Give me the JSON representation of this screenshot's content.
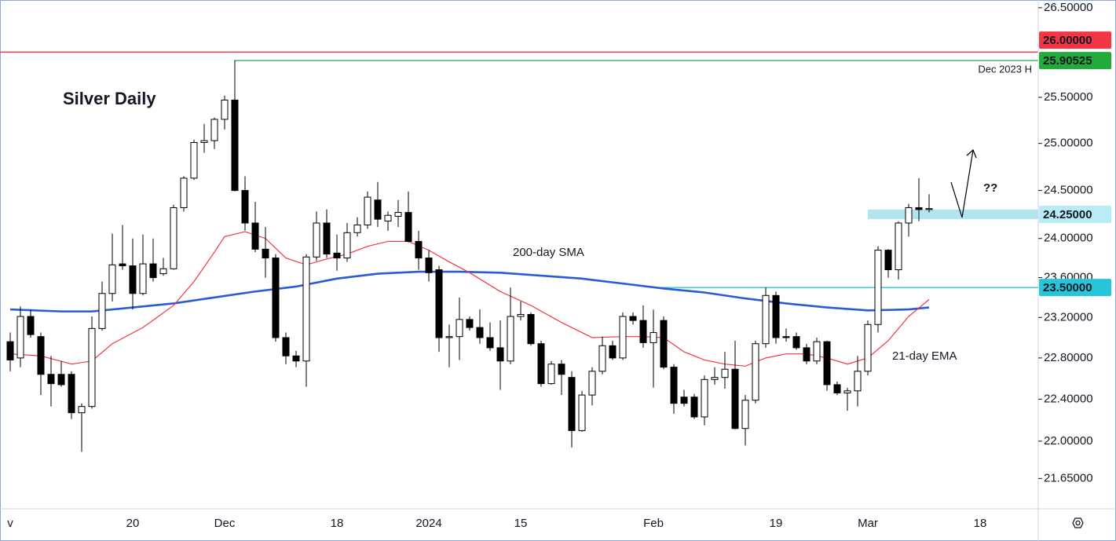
{
  "chart_data": {
    "type": "candlestick",
    "title": "Silver Daily",
    "question": "??",
    "log_scale": true,
    "grid": false,
    "up_color": "#ffffff",
    "down_color": "#000000",
    "wick_color": "#000000",
    "categories": [
      "v",
      null,
      null,
      null,
      null,
      null,
      null,
      null,
      null,
      null,
      null,
      null,
      "20",
      null,
      null,
      null,
      null,
      null,
      null,
      null,
      null,
      "Dec",
      null,
      null,
      null,
      null,
      null,
      null,
      null,
      null,
      null,
      null,
      "18",
      null,
      null,
      null,
      null,
      null,
      null,
      null,
      null,
      "2024",
      null,
      null,
      null,
      null,
      null,
      null,
      null,
      null,
      "15",
      null,
      null,
      null,
      null,
      null,
      null,
      null,
      null,
      null,
      null,
      null,
      null,
      "Feb",
      null,
      null,
      null,
      null,
      null,
      null,
      null,
      null,
      null,
      null,
      null,
      "19",
      null,
      null,
      null,
      null,
      null,
      null,
      null,
      null,
      "Mar",
      null,
      null,
      null,
      null,
      null,
      null,
      null,
      null,
      null,
      null,
      "18",
      null,
      null,
      null,
      null,
      null
    ],
    "open": [
      22.96,
      22.8,
      23.21,
      23.01,
      22.64,
      22.64,
      22.64,
      22.27,
      22.33,
      23.09,
      23.44,
      23.74,
      23.72,
      23.44,
      23.74,
      23.64,
      23.69,
      24.32,
      24.63,
      25.01,
      25.03,
      25.26,
      25.47,
      24.5,
      24.16,
      23.89,
      23.8,
      23.0,
      22.82,
      22.77,
      23.81,
      24.16,
      23.85,
      23.8,
      24.06,
      24.14,
      24.4,
      24.18,
      24.23,
      24.27,
      23.97,
      23.8,
      23.68,
      23.0,
      23.01,
      23.18,
      23.1,
      23.0,
      22.9,
      22.77,
      23.21,
      23.23,
      22.94,
      22.55,
      22.74,
      22.61,
      22.1,
      22.44,
      22.67,
      22.92,
      22.8,
      23.21,
      23.17,
      22.95,
      23.17,
      22.71,
      22.42,
      22.42,
      22.23,
      22.59,
      22.61,
      22.69,
      22.12,
      22.39,
      22.94,
      23.42,
      23.01,
      23.01,
      22.9,
      22.77,
      22.96,
      22.54,
      22.46,
      22.48,
      22.67,
      23.13,
      23.88,
      23.68,
      24.16,
      24.32,
      24.3,
      null,
      null,
      null,
      null,
      null,
      null,
      null,
      null,
      null,
      null
    ],
    "high": [
      23.05,
      23.31,
      23.28,
      23.05,
      22.82,
      22.77,
      22.67,
      22.36,
      23.21,
      23.56,
      24.05,
      24.14,
      24.0,
      24.04,
      24.0,
      23.8,
      24.35,
      24.65,
      25.04,
      25.21,
      25.28,
      25.52,
      25.91,
      24.65,
      24.38,
      24.12,
      23.84,
      23.05,
      22.87,
      23.84,
      24.28,
      24.3,
      24.04,
      24.16,
      24.22,
      24.49,
      24.59,
      24.28,
      24.4,
      24.49,
      24.08,
      23.88,
      23.72,
      23.13,
      23.4,
      23.21,
      23.28,
      23.15,
      23.17,
      23.5,
      23.36,
      23.25,
      22.97,
      22.77,
      22.78,
      22.67,
      22.48,
      22.71,
      23.01,
      22.97,
      23.25,
      23.25,
      23.32,
      23.28,
      23.21,
      22.74,
      22.49,
      22.45,
      22.63,
      22.71,
      22.86,
      22.97,
      22.44,
      22.97,
      23.5,
      23.46,
      23.09,
      23.05,
      22.94,
      23.0,
      22.97,
      22.57,
      22.51,
      22.82,
      23.17,
      23.92,
      23.89,
      24.18,
      24.36,
      24.63,
      24.46,
      null,
      null,
      null,
      null,
      null,
      null,
      null,
      null,
      null,
      null
    ],
    "low": [
      22.67,
      22.71,
      23.0,
      22.44,
      22.33,
      22.52,
      22.21,
      21.9,
      22.31,
      23.07,
      23.36,
      23.68,
      23.28,
      23.42,
      23.56,
      23.62,
      23.68,
      24.28,
      24.61,
      24.9,
      24.94,
      25.15,
      24.49,
      24.08,
      23.86,
      23.6,
      22.96,
      22.74,
      22.71,
      22.52,
      23.77,
      23.8,
      23.67,
      23.76,
      24.02,
      24.1,
      24.12,
      24.08,
      24.12,
      23.96,
      23.68,
      23.56,
      22.86,
      22.71,
      22.78,
      23.07,
      22.94,
      22.87,
      22.49,
      22.74,
      23.17,
      22.92,
      22.52,
      22.54,
      22.44,
      21.94,
      22.09,
      22.34,
      22.64,
      22.78,
      22.78,
      23.13,
      22.9,
      22.51,
      22.69,
      22.26,
      22.33,
      22.21,
      22.15,
      22.54,
      22.5,
      22.11,
      21.96,
      22.36,
      22.9,
      22.94,
      22.96,
      22.88,
      22.74,
      22.74,
      22.48,
      22.44,
      22.29,
      22.33,
      22.63,
      23.05,
      23.6,
      23.58,
      24.02,
      24.18,
      24.27,
      null,
      null,
      null,
      null,
      null,
      null,
      null,
      null,
      null,
      null
    ],
    "close": [
      22.78,
      23.21,
      23.03,
      22.64,
      22.55,
      22.54,
      22.27,
      22.33,
      23.09,
      23.44,
      23.73,
      23.72,
      23.44,
      23.74,
      23.6,
      23.69,
      24.32,
      24.63,
      25.01,
      25.03,
      25.26,
      25.47,
      24.5,
      24.16,
      23.89,
      23.8,
      23.0,
      22.82,
      22.77,
      23.81,
      24.16,
      23.84,
      23.8,
      24.06,
      24.14,
      24.43,
      24.2,
      24.24,
      24.27,
      23.97,
      23.8,
      23.65,
      23.0,
      23.01,
      23.18,
      23.1,
      23.0,
      22.9,
      22.77,
      23.21,
      23.23,
      22.94,
      22.55,
      22.74,
      22.64,
      22.1,
      22.44,
      22.67,
      22.92,
      22.8,
      23.21,
      23.17,
      22.95,
      23.05,
      22.71,
      22.36,
      22.36,
      22.23,
      22.59,
      22.61,
      22.69,
      22.12,
      22.39,
      22.94,
      23.42,
      23.0,
      23.0,
      22.9,
      22.77,
      22.96,
      22.54,
      22.46,
      22.48,
      22.67,
      23.13,
      23.88,
      23.68,
      24.16,
      24.32,
      24.3,
      24.31,
      null,
      null,
      null,
      null,
      null,
      null,
      null,
      null,
      null,
      null
    ],
    "lines": [
      {
        "name": "200-day SMA",
        "color": "#2a5bd7",
        "x": [
          0,
          5,
          8,
          12,
          16,
          20,
          24,
          28,
          32,
          36,
          40,
          44,
          48,
          52,
          56,
          60,
          64,
          68,
          72,
          76,
          80,
          84,
          88,
          90
        ],
        "values": [
          23.28,
          23.26,
          23.26,
          23.3,
          23.34,
          23.4,
          23.46,
          23.51,
          23.59,
          23.64,
          23.66,
          23.66,
          23.65,
          23.62,
          23.59,
          23.54,
          23.49,
          23.45,
          23.39,
          23.34,
          23.3,
          23.27,
          23.28,
          23.3
        ]
      },
      {
        "name": "21-day EMA",
        "color": "#f23645",
        "x": [
          0,
          3,
          6,
          8,
          10,
          13,
          16,
          18,
          20,
          21,
          23,
          25,
          27,
          29,
          31,
          33,
          35,
          37,
          39,
          41,
          43,
          45,
          48,
          51,
          54,
          57,
          60,
          62,
          64,
          66,
          68,
          70,
          72,
          74,
          76,
          78,
          80,
          82,
          84,
          86,
          88,
          90
        ],
        "values": [
          22.84,
          22.82,
          22.74,
          22.77,
          22.94,
          23.1,
          23.32,
          23.56,
          23.86,
          24.02,
          24.07,
          24.0,
          23.8,
          23.73,
          23.79,
          23.84,
          23.92,
          23.97,
          23.97,
          23.88,
          23.76,
          23.65,
          23.46,
          23.32,
          23.15,
          23.0,
          23.01,
          23.01,
          23.0,
          22.86,
          22.78,
          22.74,
          22.72,
          22.8,
          22.84,
          22.84,
          22.8,
          22.74,
          22.8,
          22.97,
          23.21,
          23.38
        ]
      }
    ],
    "levels": [
      {
        "value": 26,
        "label": "26.00000",
        "color": "#f23645",
        "text_color": "#ffffff"
      },
      {
        "value": 25.90525,
        "label": "25.90525",
        "color": "#22ab3c",
        "text_color": "#ffffff",
        "from": 22,
        "note": "Dec 2023 H"
      },
      {
        "value": 23.5,
        "label": "23.50000",
        "color": "#26c6da",
        "text_color": "#131722",
        "from": 63
      }
    ],
    "zone": {
      "low": 24.2,
      "high": 24.3,
      "value": 24.25,
      "label": "24.25000",
      "from": 84,
      "color": "#a6e1ee",
      "label_color": "#b8ecf5"
    },
    "ylim": [
      21.37,
      26.57
    ],
    "yticks": [
      {
        "value": 21.65,
        "label": "21.65000"
      },
      {
        "value": 22,
        "label": "22.00000"
      },
      {
        "value": 22.4,
        "label": "22.40000"
      },
      {
        "value": 22.8,
        "label": "22.80000"
      },
      {
        "value": 23.2,
        "label": "23.20000"
      },
      {
        "value": 23.6,
        "label": "23.60000"
      },
      {
        "value": 24,
        "label": "24.00000"
      },
      {
        "value": 24.5,
        "label": "24.50000"
      },
      {
        "value": 25,
        "label": "25.00000"
      },
      {
        "value": 25.5,
        "label": "25.50000"
      },
      {
        "value": 26.5,
        "label": "26.50000"
      }
    ]
  }
}
